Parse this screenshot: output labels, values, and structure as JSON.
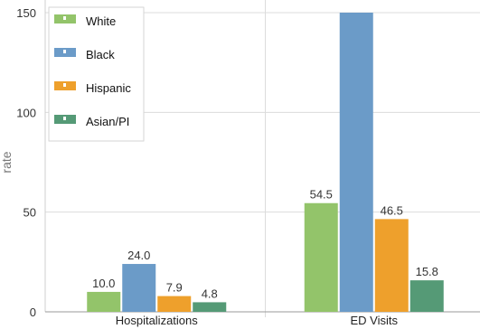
{
  "chart_data": {
    "type": "bar",
    "categories": [
      "Hospitalizations",
      "ED Visits"
    ],
    "series": [
      {
        "name": "White",
        "values": [
          10.0,
          54.5
        ],
        "labels": [
          "10.0",
          "54.5"
        ],
        "color": "#93c46a"
      },
      {
        "name": "Black",
        "values": [
          24.0,
          150
        ],
        "labels": [
          "24.0",
          ""
        ],
        "color": "#6b9bc8"
      },
      {
        "name": "Hispanic",
        "values": [
          7.9,
          46.5
        ],
        "labels": [
          "7.9",
          "46.5"
        ],
        "color": "#eea02c"
      },
      {
        "name": "Asian/PI",
        "values": [
          4.8,
          15.8
        ],
        "labels": [
          "4.8",
          "15.8"
        ],
        "color": "#559a76"
      }
    ],
    "ylabel": "rate",
    "xlabel": "",
    "ylim": [
      0,
      150
    ],
    "yticks": [
      0,
      50,
      100,
      150
    ],
    "grid": true,
    "legend_position": "top-left",
    "title": ""
  }
}
